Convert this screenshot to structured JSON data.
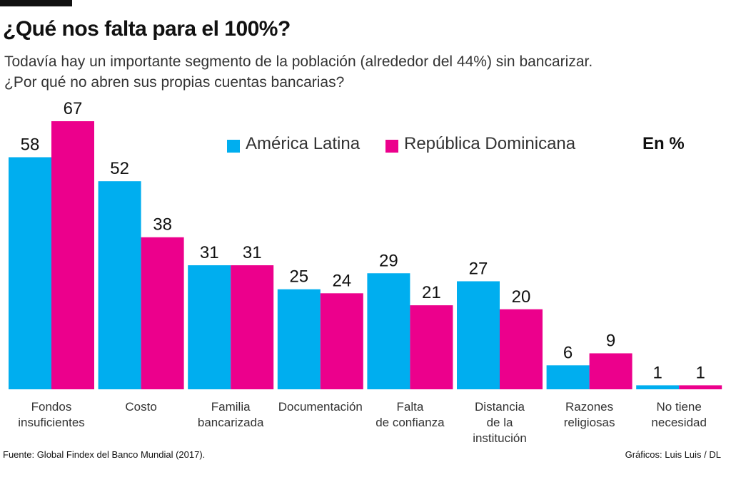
{
  "chart_data": {
    "type": "bar",
    "title": "¿Qué nos falta para el 100%?",
    "subtitle": "Todavía hay un importante segmento de la población (alrededor del 44%) sin bancarizar.\n¿Por qué no abren sus propias cuentas bancarias?",
    "unit_note": "En %",
    "source": "Fuente: Global Findex del Banco Mundial (2017).",
    "credit": "Gráficos: Luis Luis / DL",
    "categories": [
      "Fondos\ninsuficientes",
      "Costo",
      "Familia\nbancarizada",
      "Documentación",
      "Falta\nde confianza",
      "Distancia\nde la\ninstitución",
      "Razones\nreligiosas",
      "No tiene\nnecesidad"
    ],
    "series": [
      {
        "name": "América Latina",
        "color": "#00aeef",
        "values": [
          58,
          52,
          31,
          25,
          29,
          27,
          6,
          1
        ]
      },
      {
        "name": "República Dominicana",
        "color": "#ec008c",
        "values": [
          67,
          38,
          31,
          24,
          21,
          20,
          9,
          1
        ]
      }
    ]
  }
}
